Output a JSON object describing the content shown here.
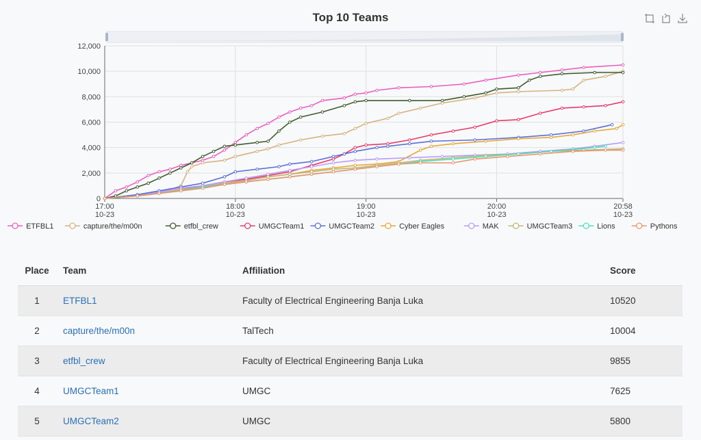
{
  "chart_data": {
    "type": "line",
    "title": "Top 10 Teams",
    "ylim": [
      0,
      12000
    ],
    "yticks": [
      "0",
      "2,000",
      "4,000",
      "6,000",
      "8,000",
      "10,000",
      "12,000"
    ],
    "xticks": [
      {
        "time": "17:00",
        "date": "10-23"
      },
      {
        "time": "18:00",
        "date": "10-23"
      },
      {
        "time": "19:00",
        "date": "10-23"
      },
      {
        "time": "20:00",
        "date": "10-23"
      },
      {
        "time": "20:58",
        "date": "10-23"
      }
    ],
    "xlim_minutes": [
      0,
      238
    ],
    "grid": true,
    "legend_position": "bottom",
    "series": [
      {
        "name": "ETFBL1",
        "color": "#e85fc0",
        "points": [
          [
            0,
            0
          ],
          [
            5,
            600
          ],
          [
            10,
            900
          ],
          [
            15,
            1300
          ],
          [
            20,
            1800
          ],
          [
            25,
            2100
          ],
          [
            30,
            2300
          ],
          [
            35,
            2600
          ],
          [
            40,
            2800
          ],
          [
            45,
            3000
          ],
          [
            50,
            3300
          ],
          [
            55,
            3800
          ],
          [
            60,
            4400
          ],
          [
            65,
            5000
          ],
          [
            70,
            5500
          ],
          [
            75,
            5900
          ],
          [
            80,
            6400
          ],
          [
            85,
            6800
          ],
          [
            90,
            7100
          ],
          [
            95,
            7300
          ],
          [
            100,
            7700
          ],
          [
            110,
            7900
          ],
          [
            115,
            8200
          ],
          [
            120,
            8300
          ],
          [
            125,
            8500
          ],
          [
            135,
            8700
          ],
          [
            150,
            8800
          ],
          [
            165,
            9000
          ],
          [
            175,
            9300
          ],
          [
            190,
            9700
          ],
          [
            200,
            9900
          ],
          [
            210,
            10100
          ],
          [
            220,
            10300
          ],
          [
            238,
            10500
          ]
        ]
      },
      {
        "name": "capture/the/m00n",
        "color": "#d4b27e",
        "points": [
          [
            0,
            0
          ],
          [
            15,
            300
          ],
          [
            25,
            500
          ],
          [
            30,
            700
          ],
          [
            35,
            1000
          ],
          [
            38,
            2100
          ],
          [
            40,
            2500
          ],
          [
            45,
            2800
          ],
          [
            55,
            3000
          ],
          [
            60,
            3300
          ],
          [
            70,
            3700
          ],
          [
            75,
            3900
          ],
          [
            80,
            4200
          ],
          [
            90,
            4600
          ],
          [
            100,
            4900
          ],
          [
            110,
            5100
          ],
          [
            115,
            5500
          ],
          [
            120,
            5900
          ],
          [
            130,
            6300
          ],
          [
            135,
            6700
          ],
          [
            145,
            7100
          ],
          [
            155,
            7500
          ],
          [
            170,
            7900
          ],
          [
            180,
            8300
          ],
          [
            190,
            8400
          ],
          [
            210,
            8500
          ],
          [
            215,
            8600
          ],
          [
            220,
            9300
          ],
          [
            230,
            9600
          ],
          [
            238,
            10000
          ]
        ]
      },
      {
        "name": "etfbl_crew",
        "color": "#3f5b2e",
        "points": [
          [
            0,
            0
          ],
          [
            5,
            200
          ],
          [
            10,
            600
          ],
          [
            15,
            900
          ],
          [
            20,
            1200
          ],
          [
            25,
            1600
          ],
          [
            30,
            2000
          ],
          [
            35,
            2400
          ],
          [
            40,
            2800
          ],
          [
            45,
            3300
          ],
          [
            50,
            3700
          ],
          [
            55,
            4100
          ],
          [
            60,
            4200
          ],
          [
            70,
            4400
          ],
          [
            75,
            4500
          ],
          [
            80,
            5300
          ],
          [
            85,
            6000
          ],
          [
            90,
            6400
          ],
          [
            100,
            6800
          ],
          [
            110,
            7300
          ],
          [
            115,
            7600
          ],
          [
            120,
            7700
          ],
          [
            140,
            7700
          ],
          [
            155,
            7700
          ],
          [
            165,
            8000
          ],
          [
            175,
            8300
          ],
          [
            180,
            8600
          ],
          [
            190,
            8700
          ],
          [
            195,
            9300
          ],
          [
            200,
            9600
          ],
          [
            210,
            9800
          ],
          [
            225,
            9900
          ],
          [
            238,
            9900
          ]
        ]
      },
      {
        "name": "UMGCTeam1",
        "color": "#e8386a",
        "points": [
          [
            0,
            0
          ],
          [
            15,
            200
          ],
          [
            25,
            400
          ],
          [
            35,
            700
          ],
          [
            45,
            1000
          ],
          [
            55,
            1300
          ],
          [
            65,
            1500
          ],
          [
            75,
            1800
          ],
          [
            85,
            2100
          ],
          [
            95,
            2600
          ],
          [
            105,
            3100
          ],
          [
            110,
            3500
          ],
          [
            115,
            4000
          ],
          [
            120,
            4200
          ],
          [
            130,
            4300
          ],
          [
            140,
            4600
          ],
          [
            150,
            5000
          ],
          [
            160,
            5300
          ],
          [
            170,
            5600
          ],
          [
            180,
            6100
          ],
          [
            190,
            6200
          ],
          [
            200,
            6700
          ],
          [
            210,
            7100
          ],
          [
            220,
            7200
          ],
          [
            230,
            7300
          ],
          [
            238,
            7600
          ]
        ]
      },
      {
        "name": "UMGCTeam2",
        "color": "#5a6fd8",
        "points": [
          [
            0,
            0
          ],
          [
            15,
            300
          ],
          [
            25,
            600
          ],
          [
            35,
            900
          ],
          [
            45,
            1200
          ],
          [
            55,
            1700
          ],
          [
            60,
            2100
          ],
          [
            70,
            2300
          ],
          [
            80,
            2500
          ],
          [
            85,
            2700
          ],
          [
            95,
            2900
          ],
          [
            105,
            3300
          ],
          [
            110,
            3500
          ],
          [
            115,
            3700
          ],
          [
            125,
            4000
          ],
          [
            130,
            4100
          ],
          [
            140,
            4300
          ],
          [
            150,
            4500
          ],
          [
            170,
            4600
          ],
          [
            190,
            4800
          ],
          [
            205,
            5000
          ],
          [
            220,
            5300
          ],
          [
            233,
            5800
          ]
        ]
      },
      {
        "name": "Cyber Eagles",
        "color": "#e6a73a",
        "points": [
          [
            0,
            0
          ],
          [
            15,
            200
          ],
          [
            25,
            400
          ],
          [
            35,
            600
          ],
          [
            45,
            900
          ],
          [
            55,
            1200
          ],
          [
            65,
            1400
          ],
          [
            75,
            1700
          ],
          [
            85,
            1900
          ],
          [
            95,
            2200
          ],
          [
            105,
            2400
          ],
          [
            115,
            2600
          ],
          [
            125,
            2700
          ],
          [
            135,
            2900
          ],
          [
            145,
            3800
          ],
          [
            150,
            4100
          ],
          [
            160,
            4300
          ],
          [
            175,
            4500
          ],
          [
            190,
            4700
          ],
          [
            205,
            4800
          ],
          [
            215,
            5000
          ],
          [
            225,
            5300
          ],
          [
            235,
            5500
          ],
          [
            238,
            5800
          ]
        ]
      },
      {
        "name": "MAK",
        "color": "#b69cf5",
        "points": [
          [
            0,
            0
          ],
          [
            15,
            200
          ],
          [
            25,
            500
          ],
          [
            35,
            800
          ],
          [
            45,
            1000
          ],
          [
            55,
            1300
          ],
          [
            65,
            1600
          ],
          [
            75,
            1900
          ],
          [
            85,
            2200
          ],
          [
            95,
            2500
          ],
          [
            105,
            2800
          ],
          [
            115,
            3000
          ],
          [
            125,
            3100
          ],
          [
            140,
            3200
          ],
          [
            155,
            3300
          ],
          [
            170,
            3400
          ],
          [
            185,
            3500
          ],
          [
            200,
            3700
          ],
          [
            215,
            3900
          ],
          [
            225,
            4100
          ],
          [
            238,
            4400
          ]
        ]
      },
      {
        "name": "UMGCTeam3",
        "color": "#bfb677",
        "points": [
          [
            0,
            0
          ],
          [
            15,
            200
          ],
          [
            25,
            400
          ],
          [
            35,
            700
          ],
          [
            45,
            900
          ],
          [
            55,
            1200
          ],
          [
            65,
            1400
          ],
          [
            75,
            1700
          ],
          [
            85,
            1900
          ],
          [
            95,
            2100
          ],
          [
            105,
            2300
          ],
          [
            115,
            2400
          ],
          [
            125,
            2600
          ],
          [
            135,
            2800
          ],
          [
            145,
            3000
          ],
          [
            160,
            3200
          ],
          [
            175,
            3400
          ],
          [
            190,
            3500
          ],
          [
            205,
            3700
          ],
          [
            220,
            3800
          ],
          [
            238,
            3900
          ]
        ]
      },
      {
        "name": "Lions",
        "color": "#4ee0b6",
        "points": [
          [
            0,
            0
          ],
          [
            15,
            200
          ],
          [
            25,
            400
          ],
          [
            35,
            600
          ],
          [
            45,
            900
          ],
          [
            55,
            1100
          ],
          [
            65,
            1300
          ],
          [
            75,
            1500
          ],
          [
            85,
            1700
          ],
          [
            95,
            1900
          ],
          [
            105,
            2100
          ],
          [
            115,
            2300
          ],
          [
            125,
            2500
          ],
          [
            135,
            2700
          ],
          [
            145,
            2900
          ],
          [
            160,
            3100
          ],
          [
            175,
            3300
          ],
          [
            190,
            3500
          ],
          [
            205,
            3700
          ],
          [
            225,
            4000
          ],
          [
            230,
            4100
          ]
        ]
      },
      {
        "name": "Pythons",
        "color": "#e9936c",
        "points": [
          [
            0,
            0
          ],
          [
            15,
            200
          ],
          [
            25,
            400
          ],
          [
            35,
            600
          ],
          [
            45,
            800
          ],
          [
            55,
            1100
          ],
          [
            65,
            1300
          ],
          [
            75,
            1500
          ],
          [
            85,
            1700
          ],
          [
            95,
            1900
          ],
          [
            105,
            2100
          ],
          [
            115,
            2300
          ],
          [
            125,
            2500
          ],
          [
            135,
            2700
          ],
          [
            145,
            2800
          ],
          [
            160,
            2800
          ],
          [
            170,
            3100
          ],
          [
            185,
            3300
          ],
          [
            200,
            3500
          ],
          [
            215,
            3700
          ],
          [
            230,
            3800
          ],
          [
            238,
            3800
          ]
        ]
      }
    ]
  },
  "toolbox": {
    "icons": [
      "zoom-icon",
      "zoom-reset-icon",
      "download-icon"
    ]
  },
  "table": {
    "headers": {
      "place": "Place",
      "team": "Team",
      "affiliation": "Affiliation",
      "score": "Score"
    },
    "rows": [
      {
        "place": "1",
        "team": "ETFBL1",
        "affiliation": "Faculty of Electrical Engineering Banja Luka",
        "score": "10520"
      },
      {
        "place": "2",
        "team": "capture/the/m00n",
        "affiliation": "TalTech",
        "score": "10004"
      },
      {
        "place": "3",
        "team": "etfbl_crew",
        "affiliation": "Faculty of Electrical Engineering Banja Luka",
        "score": "9855"
      },
      {
        "place": "4",
        "team": "UMGCTeam1",
        "affiliation": "UMGC",
        "score": "7625"
      },
      {
        "place": "5",
        "team": "UMGCTeam2",
        "affiliation": "UMGC",
        "score": "5800"
      }
    ]
  }
}
